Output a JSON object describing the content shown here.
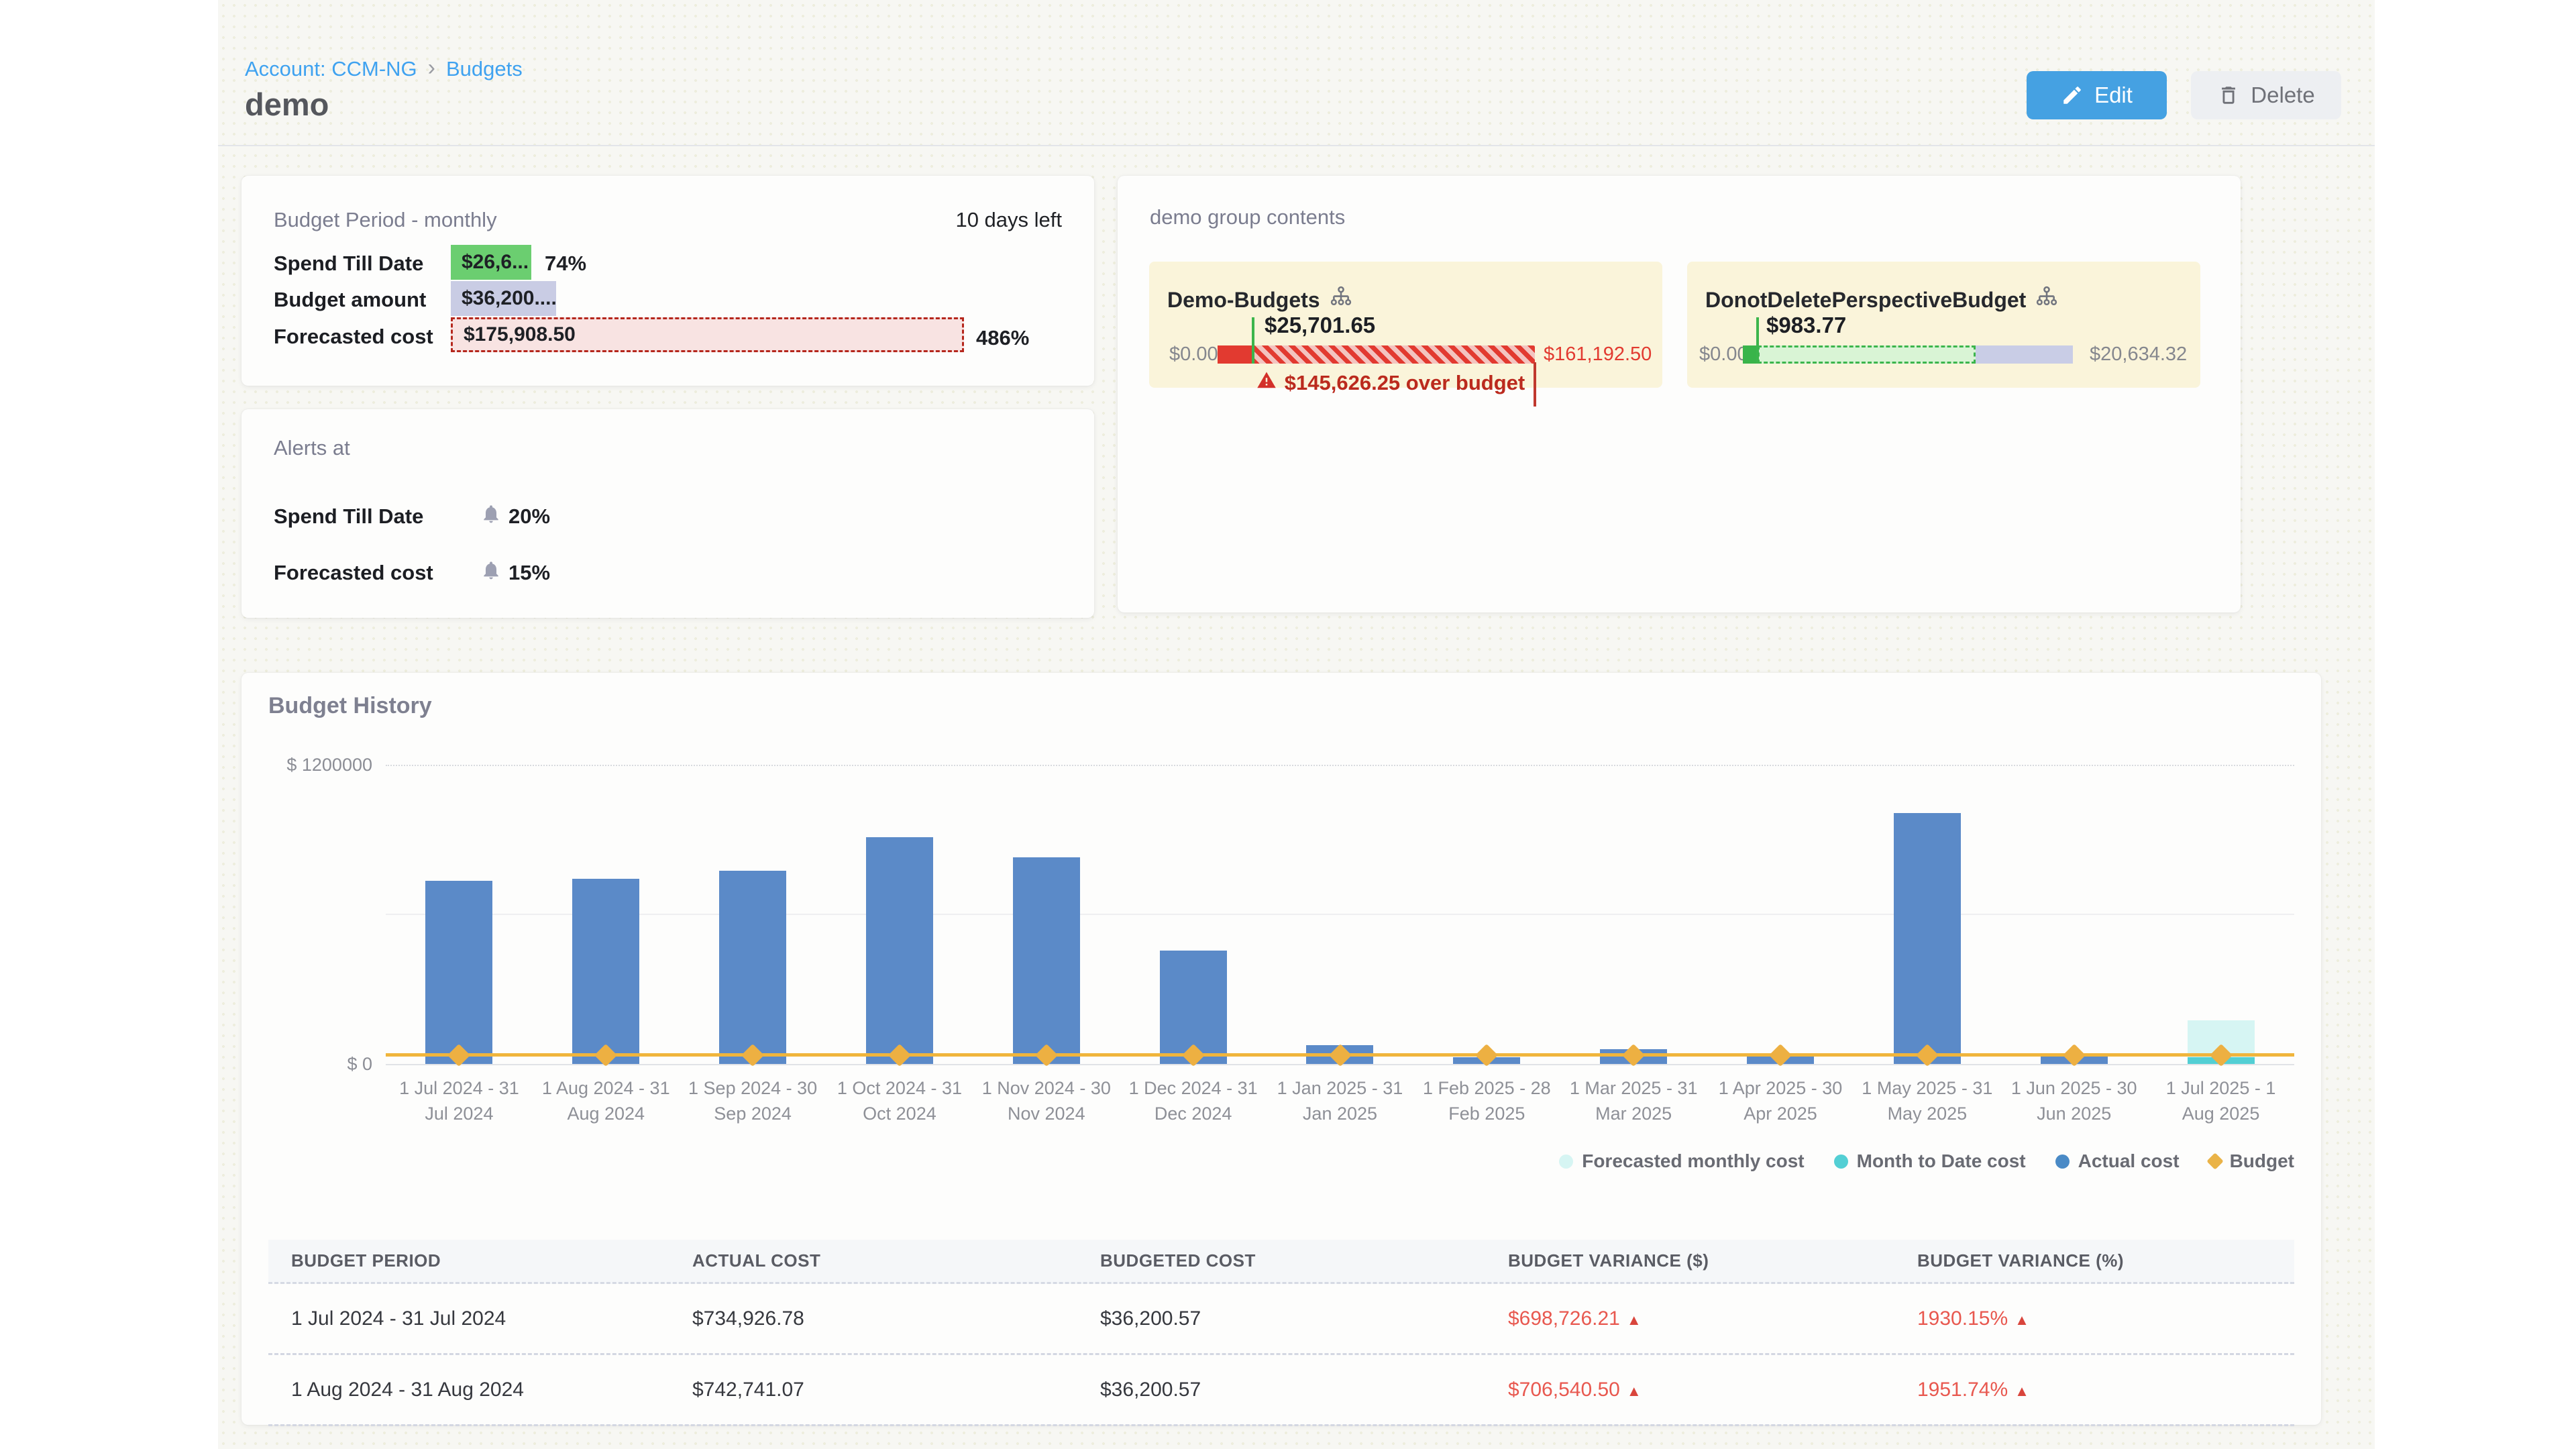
{
  "breadcrumb": {
    "account": "Account: CCM-NG",
    "section": "Budgets"
  },
  "page": {
    "title": "demo"
  },
  "actions": {
    "edit": "Edit",
    "delete": "Delete"
  },
  "colors": {
    "accent_blue": "#45a1e2",
    "link_blue": "#3fa2f0",
    "bar_blue": "#5b8ac8",
    "budget_yellow": "#f0b53c",
    "forecast_cyan": "#d6f5f3",
    "mtd_cyan": "#53cfd4",
    "over_red": "#e23a30",
    "ok_green": "#3cb54c",
    "chip_green": "#6bce70",
    "chip_lavender": "#c9cce4",
    "chip_pink": "#f8e3e2",
    "tile_yellow": "#faf4da"
  },
  "budget_period_card": {
    "title": "Budget Period - monthly",
    "days_left": "10 days left",
    "rows": [
      {
        "label": "Spend Till Date",
        "value": "$26,6...",
        "percent": "74%"
      },
      {
        "label": "Budget amount",
        "value": "$36,200....",
        "percent": ""
      },
      {
        "label": "Forecasted cost",
        "value": "$175,908.50",
        "percent": "486%"
      }
    ]
  },
  "alerts_card": {
    "title": "Alerts at",
    "rows": [
      {
        "label": "Spend Till Date",
        "value": "20%"
      },
      {
        "label": "Forecasted cost",
        "value": "15%"
      }
    ]
  },
  "group_card": {
    "title": "demo group contents",
    "tiles": [
      {
        "name": "Demo-Budgets",
        "marker_value": "$25,701.65",
        "min": "$0.00",
        "max": "$161,192.50",
        "over_text": "$145,626.25 over budget",
        "status": "over-budget"
      },
      {
        "name": "DonotDeletePerspectiveBudget",
        "marker_value": "$983.77",
        "min": "$0.00",
        "max": "$20,634.32",
        "status": "under-budget"
      }
    ]
  },
  "history": {
    "title": "Budget History",
    "chart_data": {
      "type": "bar",
      "title": "Budget History",
      "ylim": [
        0,
        1200000
      ],
      "ytick_labels": [
        "$ 1200000",
        "$ 0"
      ],
      "grid": "horizontal",
      "legend_position": "bottom-right",
      "categories": [
        "1 Jul 2024 - 31 Jul 2024",
        "1 Aug 2024 - 31 Aug 2024",
        "1 Sep 2024 - 30 Sep 2024",
        "1 Oct 2024 - 31 Oct 2024",
        "1 Nov 2024 - 30 Nov 2024",
        "1 Dec 2024 - 31 Dec 2024",
        "1 Jan 2025 - 31 Jan 2025",
        "1 Feb 2025 - 28 Feb 2025",
        "1 Mar 2025 - 31 Mar 2025",
        "1 Apr 2025 - 30 Apr 2025",
        "1 May 2025 - 31 May 2025",
        "1 Jun 2025 - 30 Jun 2025",
        "1 Jul 2025 - 1 Aug 2025"
      ],
      "xtick_labels": [
        [
          "1 Jul 2024 - 31",
          "Jul 2024"
        ],
        [
          "1 Aug 2024 - 31",
          "Aug 2024"
        ],
        [
          "1 Sep 2024 - 30",
          "Sep 2024"
        ],
        [
          "1 Oct 2024 - 31",
          "Oct 2024"
        ],
        [
          "1 Nov 2024 - 30",
          "Nov 2024"
        ],
        [
          "1 Dec 2024 - 31",
          "Dec 2024"
        ],
        [
          "1 Jan 2025 - 31",
          "Jan 2025"
        ],
        [
          "1 Feb 2025 - 28",
          "Feb 2025"
        ],
        [
          "1 Mar 2025 - 31",
          "Mar 2025"
        ],
        [
          "1 Apr 2025 - 30",
          "Apr 2025"
        ],
        [
          "1 May 2025 - 31",
          "May 2025"
        ],
        [
          "1 Jun 2025 - 30",
          "Jun 2025"
        ],
        [
          "1 Jul 2025 - 1",
          "Aug 2025"
        ]
      ],
      "series": [
        {
          "name": "Actual cost",
          "color": "#5b8ac8",
          "values": [
            734926.78,
            742741.07,
            775000,
            910000,
            830000,
            455000,
            75000,
            27000,
            59000,
            30000,
            1005000,
            30000,
            null
          ]
        },
        {
          "name": "Forecasted monthly cost",
          "color": "#d6f5f3",
          "values": [
            null,
            null,
            null,
            null,
            null,
            null,
            null,
            null,
            null,
            null,
            null,
            null,
            175908.5
          ]
        },
        {
          "name": "Month to Date cost",
          "color": "#53cfd4",
          "values": [
            null,
            null,
            null,
            null,
            null,
            null,
            null,
            null,
            null,
            null,
            null,
            null,
            26617
          ]
        },
        {
          "name": "Budget",
          "color": "#f0b53c",
          "values": [
            36200.57,
            36200.57,
            36200.57,
            36200.57,
            36200.57,
            36200.57,
            36200.57,
            36200.57,
            36200.57,
            36200.57,
            36200.57,
            36200.57,
            36200.57
          ]
        }
      ],
      "legend": [
        {
          "label": "Forecasted monthly cost",
          "color": "#d6f5f3",
          "shape": "circle"
        },
        {
          "label": "Month to Date cost",
          "color": "#53cfd4",
          "shape": "circle"
        },
        {
          "label": "Actual cost",
          "color": "#4a8ac6",
          "shape": "circle"
        },
        {
          "label": "Budget",
          "color": "#eab347",
          "shape": "diamond"
        }
      ]
    },
    "table": {
      "headers": [
        "BUDGET PERIOD",
        "ACTUAL COST",
        "BUDGETED COST",
        "BUDGET VARIANCE ($)",
        "BUDGET VARIANCE (%)"
      ],
      "rows": [
        {
          "period": "1 Jul 2024 - 31 Jul 2024",
          "actual": "$734,926.78",
          "budgeted": "$36,200.57",
          "variance_usd": "$698,726.21",
          "variance_pct": "1930.15%",
          "direction": "up"
        },
        {
          "period": "1 Aug 2024 - 31 Aug 2024",
          "actual": "$742,741.07",
          "budgeted": "$36,200.57",
          "variance_usd": "$706,540.50",
          "variance_pct": "1951.74%",
          "direction": "up"
        }
      ]
    }
  }
}
